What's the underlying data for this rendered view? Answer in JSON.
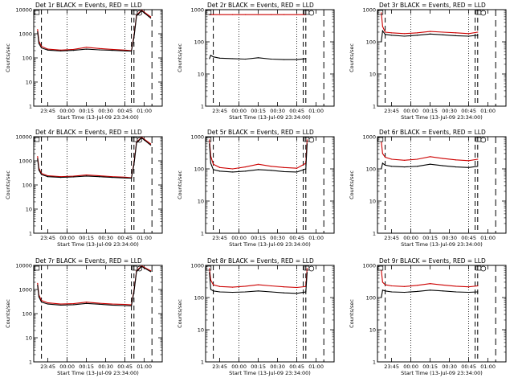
{
  "chart_data": [
    {
      "type": "line",
      "title": "Det 1r  BLACK = Events, RED = LLD",
      "xlabel": "Start Time (13-Jul-09 23:34:00)",
      "ylabel": "Counts/sec",
      "xlim": [
        "23:34",
        "01:14"
      ],
      "ylim": [
        1,
        10000
      ],
      "yscale": "log",
      "x_ticks": [
        "23:45",
        "00:00",
        "00:15",
        "00:30",
        "00:45",
        "01:00"
      ],
      "y_ticks": [
        "1",
        "10",
        "100",
        "1000",
        "10000"
      ],
      "x": [
        "23:37",
        "23:38",
        "23:40",
        "23:45",
        "23:55",
        "00:05",
        "00:15",
        "00:25",
        "00:35",
        "00:45",
        "00:50",
        "00:52",
        "00:54",
        "00:58",
        "01:05"
      ],
      "series": [
        {
          "color": "#cc0000",
          "values": [
            1500,
            500,
            300,
            230,
            210,
            225,
            275,
            245,
            225,
            210,
            200,
            800,
            6000,
            9500,
            5000
          ]
        },
        {
          "color": "#000000",
          "values": [
            1200,
            400,
            260,
            210,
            195,
            205,
            230,
            215,
            205,
            195,
            190,
            700,
            5500,
            9000,
            4500
          ]
        }
      ]
    },
    {
      "type": "line",
      "title": "Det 2r  BLACK = Events, RED = LLD",
      "xlabel": "Start Time (13-Jul-09 23:34:00)",
      "ylabel": "Counts/sec",
      "xlim": [
        "23:34",
        "01:14"
      ],
      "ylim": [
        1,
        1000
      ],
      "yscale": "log",
      "x_ticks": [
        "23:45",
        "00:00",
        "00:15",
        "00:30",
        "00:45",
        "01:00"
      ],
      "y_ticks": [
        "1",
        "10",
        "100",
        "1000"
      ],
      "x": [
        "23:37",
        "23:38",
        "23:40",
        "23:45",
        "23:55",
        "00:05",
        "00:15",
        "00:25",
        "00:35",
        "00:45",
        "00:52"
      ],
      "series": [
        {
          "color": "#cc0000",
          "values": [
            700,
            700,
            700,
            700,
            700,
            700,
            700,
            700,
            700,
            700,
            700
          ]
        },
        {
          "color": "#000000",
          "values": [
            30,
            38,
            34,
            31,
            30,
            29,
            32,
            29,
            28,
            28,
            30
          ]
        }
      ]
    },
    {
      "type": "line",
      "title": "Det 3r  BLACK = Events, RED = LLD",
      "xlabel": "Start Time (13-Jul-09 23:34:00)",
      "ylabel": "Counts/sec",
      "xlim": [
        "23:34",
        "01:14"
      ],
      "ylim": [
        1,
        1000
      ],
      "yscale": "log",
      "x_ticks": [
        "23:45",
        "00:00",
        "00:15",
        "00:30",
        "00:45",
        "01:00"
      ],
      "y_ticks": [
        "1",
        "10",
        "100",
        "1000"
      ],
      "x": [
        "23:37",
        "23:38",
        "23:40",
        "23:45",
        "23:55",
        "00:05",
        "00:15",
        "00:25",
        "00:35",
        "00:45",
        "00:52"
      ],
      "series": [
        {
          "color": "#cc0000",
          "values": [
            800,
            300,
            200,
            190,
            180,
            190,
            210,
            200,
            190,
            180,
            200
          ]
        },
        {
          "color": "#000000",
          "values": [
            100,
            220,
            170,
            160,
            150,
            160,
            175,
            165,
            155,
            150,
            160
          ]
        }
      ]
    },
    {
      "type": "line",
      "title": "Det 4r  BLACK = Events, RED = LLD",
      "xlabel": "Start Time (13-Jul-09 23:34:00)",
      "ylabel": "Counts/sec",
      "xlim": [
        "23:34",
        "01:14"
      ],
      "ylim": [
        1,
        10000
      ],
      "yscale": "log",
      "x_ticks": [
        "23:45",
        "00:00",
        "00:15",
        "00:30",
        "00:45",
        "01:00"
      ],
      "y_ticks": [
        "1",
        "10",
        "100",
        "1000",
        "10000"
      ],
      "x": [
        "23:37",
        "23:38",
        "23:40",
        "23:45",
        "23:55",
        "00:05",
        "00:15",
        "00:25",
        "00:35",
        "00:45",
        "00:50",
        "00:52",
        "00:54",
        "00:58",
        "01:05"
      ],
      "series": [
        {
          "color": "#cc0000",
          "values": [
            1500,
            500,
            300,
            240,
            220,
            230,
            260,
            240,
            220,
            210,
            200,
            800,
            6000,
            9500,
            5000
          ]
        },
        {
          "color": "#000000",
          "values": [
            1200,
            420,
            270,
            220,
            205,
            215,
            235,
            220,
            205,
            195,
            190,
            700,
            5500,
            9000,
            4500
          ]
        }
      ]
    },
    {
      "type": "line",
      "title": "Det 5r  BLACK = Events, RED = LLD",
      "xlabel": "Start Time (13-Jul-09 23:34:00)",
      "ylabel": "Counts/sec",
      "xlim": [
        "23:34",
        "01:14"
      ],
      "ylim": [
        1,
        1000
      ],
      "yscale": "log",
      "x_ticks": [
        "23:45",
        "00:00",
        "00:15",
        "00:30",
        "00:45",
        "01:00"
      ],
      "y_ticks": [
        "1",
        "10",
        "100",
        "1000"
      ],
      "x": [
        "23:37",
        "23:38",
        "23:40",
        "23:45",
        "23:55",
        "00:05",
        "00:15",
        "00:25",
        "00:35",
        "00:45",
        "00:52",
        "00:53"
      ],
      "series": [
        {
          "color": "#cc0000",
          "values": [
            800,
            250,
            140,
            110,
            100,
            115,
            140,
            120,
            110,
            105,
            150,
            800
          ]
        },
        {
          "color": "#000000",
          "values": [
            600,
            150,
            95,
            85,
            80,
            85,
            95,
            90,
            82,
            80,
            100,
            600
          ]
        }
      ]
    },
    {
      "type": "line",
      "title": "Det 6r  BLACK = Events, RED = LLD",
      "xlabel": "Start Time (13-Jul-09 23:34:00)",
      "ylabel": "Counts/sec",
      "xlim": [
        "23:34",
        "01:14"
      ],
      "ylim": [
        1,
        1000
      ],
      "yscale": "log",
      "x_ticks": [
        "23:45",
        "00:00",
        "00:15",
        "00:30",
        "00:45",
        "01:00"
      ],
      "y_ticks": [
        "1",
        "10",
        "100",
        "1000"
      ],
      "x": [
        "23:37",
        "23:38",
        "23:40",
        "23:45",
        "23:55",
        "00:05",
        "00:15",
        "00:25",
        "00:35",
        "00:45",
        "00:52"
      ],
      "series": [
        {
          "color": "#cc0000",
          "values": [
            700,
            300,
            230,
            200,
            185,
            200,
            240,
            210,
            190,
            180,
            200
          ]
        },
        {
          "color": "#000000",
          "values": [
            100,
            150,
            130,
            120,
            115,
            120,
            140,
            125,
            115,
            110,
            120
          ]
        }
      ]
    },
    {
      "type": "line",
      "title": "Det 7r  BLACK = Events, RED = LLD",
      "xlabel": "Start Time (13-Jul-09 23:34:00)",
      "ylabel": "Counts/sec",
      "xlim": [
        "23:34",
        "01:14"
      ],
      "ylim": [
        1,
        10000
      ],
      "yscale": "log",
      "x_ticks": [
        "23:45",
        "00:00",
        "00:15",
        "00:30",
        "00:45",
        "01:00"
      ],
      "y_ticks": [
        "1",
        "10",
        "100",
        "1000",
        "10000"
      ],
      "x": [
        "23:37",
        "23:38",
        "23:40",
        "23:45",
        "23:55",
        "00:05",
        "00:15",
        "00:25",
        "00:35",
        "00:45",
        "00:50",
        "00:52",
        "00:54",
        "00:58",
        "01:05"
      ],
      "series": [
        {
          "color": "#cc0000",
          "values": [
            1800,
            600,
            350,
            280,
            250,
            260,
            300,
            270,
            250,
            240,
            230,
            900,
            6000,
            9500,
            6000
          ]
        },
        {
          "color": "#000000",
          "values": [
            1500,
            500,
            300,
            250,
            225,
            235,
            265,
            245,
            225,
            215,
            210,
            800,
            5500,
            9000,
            5500
          ]
        }
      ]
    },
    {
      "type": "line",
      "title": "Det 8r  BLACK = Events, RED = LLD",
      "xlabel": "Start Time (13-Jul-09 23:34:00)",
      "ylabel": "Counts/sec",
      "xlim": [
        "23:34",
        "01:14"
      ],
      "ylim": [
        1,
        1000
      ],
      "yscale": "log",
      "x_ticks": [
        "23:45",
        "00:00",
        "00:15",
        "00:30",
        "00:45",
        "01:00"
      ],
      "y_ticks": [
        "1",
        "10",
        "100",
        "1000"
      ],
      "x": [
        "23:37",
        "23:38",
        "23:40",
        "23:45",
        "23:55",
        "00:05",
        "00:15",
        "00:25",
        "00:35",
        "00:45",
        "00:52",
        "00:53"
      ],
      "series": [
        {
          "color": "#cc0000",
          "values": [
            800,
            350,
            250,
            220,
            210,
            225,
            250,
            230,
            215,
            205,
            220,
            800
          ]
        },
        {
          "color": "#000000",
          "values": [
            600,
            180,
            160,
            150,
            145,
            150,
            160,
            150,
            140,
            135,
            150,
            600
          ]
        }
      ]
    },
    {
      "type": "line",
      "title": "Det 9r  BLACK = Events, RED = LLD",
      "xlabel": "Start Time (13-Jul-09 23:34:00)",
      "ylabel": "Counts/sec",
      "xlim": [
        "23:34",
        "01:14"
      ],
      "ylim": [
        1,
        1000
      ],
      "yscale": "log",
      "x_ticks": [
        "23:45",
        "00:00",
        "00:15",
        "00:30",
        "00:45",
        "01:00"
      ],
      "y_ticks": [
        "1",
        "10",
        "100",
        "1000"
      ],
      "x": [
        "23:37",
        "23:38",
        "23:40",
        "23:45",
        "23:55",
        "00:05",
        "00:15",
        "00:25",
        "00:35",
        "00:45",
        "00:52"
      ],
      "series": [
        {
          "color": "#cc0000",
          "values": [
            700,
            300,
            250,
            230,
            220,
            240,
            270,
            245,
            225,
            215,
            230
          ]
        },
        {
          "color": "#000000",
          "values": [
            100,
            170,
            160,
            150,
            145,
            155,
            170,
            160,
            150,
            145,
            150
          ]
        }
      ]
    }
  ]
}
